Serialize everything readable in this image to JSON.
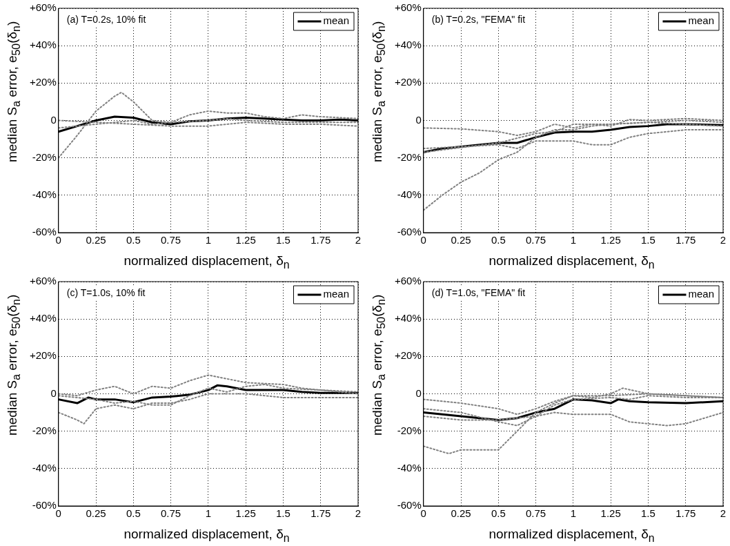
{
  "chart_data": [
    {
      "type": "line",
      "annotations": [
        "(a) T=0.2s, 10% fit"
      ],
      "xlabel": "normalized displacement, δ$_{n}$",
      "ylabel": "median S$_{a}$ error, e$_{50}$(δ$_{n}$)",
      "xlim": [
        0,
        2
      ],
      "xticks": [
        0,
        0.25,
        0.5,
        0.75,
        1,
        1.25,
        1.5,
        1.75,
        2
      ],
      "ylim": [
        -60,
        60
      ],
      "yticks": [
        {
          "value": -60,
          "label": "-60%"
        },
        {
          "value": -40,
          "label": "-40%"
        },
        {
          "value": -20,
          "label": "-20%"
        },
        {
          "value": 0,
          "label": "0"
        },
        {
          "value": 20,
          "label": "+20%"
        },
        {
          "value": 40,
          "label": "+40%"
        },
        {
          "value": 60,
          "label": "+60%"
        }
      ],
      "grid": true,
      "legend": "top right",
      "marker": "none",
      "series": [
        {
          "color": "#808080",
          "line_style": "dotted",
          "x": [
            0,
            0.125,
            0.25,
            0.375,
            0.42,
            0.5,
            0.625,
            0.75,
            0.875,
            1,
            1.125,
            1.25,
            1.375,
            1.5,
            1.625,
            1.75,
            2
          ],
          "values": [
            -20,
            -8,
            5,
            13,
            15,
            10,
            0,
            -1,
            3,
            5,
            4,
            4,
            2,
            1,
            3,
            2,
            1
          ]
        },
        {
          "color": "#808080",
          "line_style": "dotted",
          "x": [
            0,
            0.25,
            0.5,
            0.75,
            1,
            1.25,
            1.5,
            1.75,
            2
          ],
          "values": [
            0,
            -1,
            -2,
            -3,
            -3,
            -1,
            -2,
            -2,
            -3
          ]
        },
        {
          "color": "#808080",
          "line_style": "dotted",
          "x": [
            0,
            0.25,
            0.5,
            0.625,
            0.75,
            1,
            1.125,
            1.25,
            1.5,
            1.75,
            2
          ],
          "values": [
            -4,
            -2,
            0,
            -2,
            -1,
            0,
            1,
            0,
            -1,
            -1,
            -1
          ]
        },
        {
          "name": "mean",
          "color": "#000000",
          "line_style": "solid",
          "x": [
            0,
            0.125,
            0.25,
            0.375,
            0.5,
            0.625,
            0.75,
            0.875,
            1,
            1.125,
            1.25,
            1.375,
            1.5,
            1.625,
            1.75,
            1.875,
            2
          ],
          "values": [
            -6,
            -3,
            0,
            2,
            1.5,
            -1,
            -2,
            -0.5,
            0,
            1,
            1.5,
            1,
            0.5,
            0,
            0,
            0.5,
            0
          ]
        }
      ]
    },
    {
      "type": "line",
      "annotations": [
        "(b) T=0.2s, \"FEMA\" fit"
      ],
      "xlabel": "normalized displacement, δ$_{n}$",
      "ylabel": "median S$_{a}$ error, e$_{50}$(δ$_{n}$)",
      "xlim": [
        0,
        2
      ],
      "xticks": [
        0,
        0.25,
        0.5,
        0.75,
        1,
        1.25,
        1.5,
        1.75,
        2
      ],
      "ylim": [
        -60,
        60
      ],
      "yticks": [
        {
          "value": -60,
          "label": "-60%"
        },
        {
          "value": -40,
          "label": "-40%"
        },
        {
          "value": -20,
          "label": "-20%"
        },
        {
          "value": 0,
          "label": "0"
        },
        {
          "value": 20,
          "label": "+20%"
        },
        {
          "value": 40,
          "label": "+40%"
        },
        {
          "value": 60,
          "label": "+60%"
        }
      ],
      "grid": true,
      "legend": "top right",
      "marker": "none",
      "series": [
        {
          "color": "#808080",
          "line_style": "dotted",
          "x": [
            0,
            0.125,
            0.25,
            0.375,
            0.5,
            0.625,
            0.75,
            0.875,
            1,
            1.125,
            1.25,
            1.5,
            1.75,
            2
          ],
          "values": [
            -48,
            -40,
            -33,
            -28,
            -21,
            -17,
            -9,
            -5,
            -5,
            -3,
            -2,
            -1,
            0,
            -1
          ]
        },
        {
          "color": "#808080",
          "line_style": "dotted",
          "x": [
            0,
            0.25,
            0.5,
            0.625,
            0.75,
            0.875,
            1,
            1.125,
            1.25,
            1.375,
            1.5,
            1.75,
            2
          ],
          "values": [
            -4,
            -4.5,
            -6,
            -8,
            -6,
            -2,
            -4,
            -2,
            -3,
            0.5,
            0,
            1,
            0
          ]
        },
        {
          "color": "#808080",
          "line_style": "dotted",
          "x": [
            0,
            0.25,
            0.5,
            0.625,
            0.75,
            0.875,
            1,
            1.125,
            1.25,
            1.375,
            1.5,
            1.75,
            2
          ],
          "values": [
            -15,
            -14,
            -13,
            -15,
            -11,
            -11,
            -11,
            -13,
            -13,
            -9,
            -7,
            -5,
            -5
          ]
        },
        {
          "color": "#808080",
          "line_style": "dotted",
          "x": [
            0,
            0.5,
            0.75,
            0.875,
            1,
            1.25,
            1.5,
            1.75,
            2
          ],
          "values": [
            -17,
            -12,
            -7,
            -6,
            -2,
            -2,
            -1,
            -2,
            -3
          ]
        },
        {
          "name": "mean",
          "color": "#000000",
          "line_style": "solid",
          "x": [
            0,
            0.125,
            0.25,
            0.375,
            0.5,
            0.625,
            0.75,
            0.875,
            1,
            1.125,
            1.25,
            1.375,
            1.5,
            1.625,
            1.75,
            2
          ],
          "values": [
            -17,
            -15,
            -14,
            -13,
            -12,
            -12,
            -9,
            -6.5,
            -6,
            -6,
            -5,
            -3.5,
            -3,
            -2,
            -2,
            -2.5
          ]
        }
      ]
    },
    {
      "type": "line",
      "annotations": [
        "(c) T=1.0s, 10% fit"
      ],
      "xlabel": "normalized displacement, δ$_{n}$",
      "ylabel": "median S$_{a}$ error, e$_{50}$(δ$_{n}$)",
      "xlim": [
        0,
        2
      ],
      "xticks": [
        0,
        0.25,
        0.5,
        0.75,
        1,
        1.25,
        1.5,
        1.75,
        2
      ],
      "ylim": [
        -60,
        60
      ],
      "yticks": [
        {
          "value": -60,
          "label": "-60%"
        },
        {
          "value": -40,
          "label": "-40%"
        },
        {
          "value": -20,
          "label": "-20%"
        },
        {
          "value": 0,
          "label": "0"
        },
        {
          "value": 20,
          "label": "+20%"
        },
        {
          "value": 40,
          "label": "+40%"
        },
        {
          "value": 60,
          "label": "+60%"
        }
      ],
      "grid": true,
      "legend": "top right",
      "marker": "none",
      "series": [
        {
          "color": "#808080",
          "line_style": "dotted",
          "x": [
            0,
            0.125,
            0.25,
            0.375,
            0.5,
            0.625,
            0.75,
            0.875,
            1,
            1.125,
            1.25,
            1.5,
            1.625,
            1.75,
            2
          ],
          "values": [
            0,
            -1,
            2,
            4,
            0,
            4,
            3,
            7,
            10,
            8,
            6,
            5,
            3,
            2,
            1
          ]
        },
        {
          "color": "#808080",
          "line_style": "dotted",
          "x": [
            0,
            0.125,
            0.17,
            0.25,
            0.375,
            0.5,
            0.625,
            0.75,
            0.875,
            1,
            1.25,
            1.5,
            1.75,
            2
          ],
          "values": [
            -10,
            -14,
            -16,
            -8,
            -6,
            -8,
            -5,
            -5,
            -3,
            0,
            0,
            -2,
            -2,
            -2
          ]
        },
        {
          "color": "#808080",
          "line_style": "dotted",
          "x": [
            0,
            0.25,
            0.375,
            0.5,
            0.625,
            0.75,
            0.875,
            1,
            1.125,
            1.25,
            1.375,
            1.5,
            1.75,
            2
          ],
          "values": [
            -1,
            -3,
            -5,
            -4,
            -6,
            -6,
            -1,
            3,
            1,
            4,
            5,
            3,
            2,
            0
          ]
        },
        {
          "name": "mean",
          "color": "#000000",
          "line_style": "solid",
          "x": [
            0,
            0.125,
            0.2,
            0.25,
            0.375,
            0.5,
            0.625,
            0.75,
            0.875,
            1,
            1.06,
            1.125,
            1.25,
            1.375,
            1.5,
            1.625,
            1.75,
            1.875,
            2
          ],
          "values": [
            -3,
            -5,
            -2,
            -3,
            -3,
            -4.5,
            -2,
            -1.5,
            -0.5,
            2,
            4.5,
            4,
            2,
            2,
            2,
            1,
            0.5,
            0.5,
            0.5
          ]
        }
      ]
    },
    {
      "type": "line",
      "annotations": [
        "(d) T=1.0s, \"FEMA\" fit"
      ],
      "xlabel": "normalized displacement, δ$_{n}$",
      "ylabel": "median S$_{a}$ error, e$_{50}$(δ$_{n}$)",
      "xlim": [
        0,
        2
      ],
      "xticks": [
        0,
        0.25,
        0.5,
        0.75,
        1,
        1.25,
        1.5,
        1.75,
        2
      ],
      "ylim": [
        -60,
        60
      ],
      "yticks": [
        {
          "value": -60,
          "label": "-60%"
        },
        {
          "value": -40,
          "label": "-40%"
        },
        {
          "value": -20,
          "label": "-20%"
        },
        {
          "value": 0,
          "label": "0"
        },
        {
          "value": 20,
          "label": "+20%"
        },
        {
          "value": 40,
          "label": "+40%"
        },
        {
          "value": 60,
          "label": "+60%"
        }
      ],
      "grid": true,
      "legend": "top right",
      "marker": "none",
      "series": [
        {
          "color": "#808080",
          "line_style": "dotted",
          "x": [
            0,
            0.125,
            0.17,
            0.25,
            0.375,
            0.5,
            0.625,
            0.75,
            0.875,
            1,
            1.125,
            1.25,
            1.33,
            1.5,
            1.75,
            2
          ],
          "values": [
            -28,
            -31,
            -32,
            -30,
            -30,
            -30,
            -20,
            -10,
            -5,
            -1,
            -2,
            0,
            3,
            0,
            -1,
            -2
          ]
        },
        {
          "color": "#808080",
          "line_style": "dotted",
          "x": [
            0,
            0.25,
            0.5,
            0.625,
            0.75,
            0.875,
            1,
            1.25,
            1.5,
            1.75,
            2
          ],
          "values": [
            -3,
            -5,
            -8,
            -11,
            -8,
            -4,
            -1,
            -1,
            0,
            -1,
            -2
          ]
        },
        {
          "color": "#808080",
          "line_style": "dotted",
          "x": [
            0,
            0.25,
            0.5,
            0.625,
            0.75,
            0.875,
            1,
            1.25,
            1.375,
            1.5,
            1.75,
            2
          ],
          "values": [
            -8,
            -10,
            -15,
            -17,
            -12,
            -6,
            -3,
            -2,
            -3,
            -1,
            -2,
            -2
          ]
        },
        {
          "color": "#808080",
          "line_style": "dotted",
          "x": [
            0,
            0.25,
            0.5,
            0.75,
            0.875,
            1,
            1.25,
            1.375,
            1.5,
            1.625,
            1.75,
            2
          ],
          "values": [
            -12,
            -14,
            -14,
            -12,
            -10,
            -11,
            -11,
            -15,
            -16,
            -17,
            -16,
            -10
          ]
        },
        {
          "name": "mean",
          "color": "#000000",
          "line_style": "solid",
          "x": [
            0,
            0.25,
            0.5,
            0.625,
            0.75,
            0.875,
            1,
            1.125,
            1.25,
            1.3,
            1.375,
            1.5,
            1.75,
            2
          ],
          "values": [
            -10,
            -12,
            -14,
            -13,
            -10,
            -8,
            -3,
            -3.5,
            -5,
            -3,
            -4,
            -4.5,
            -5,
            -4
          ]
        }
      ]
    }
  ]
}
